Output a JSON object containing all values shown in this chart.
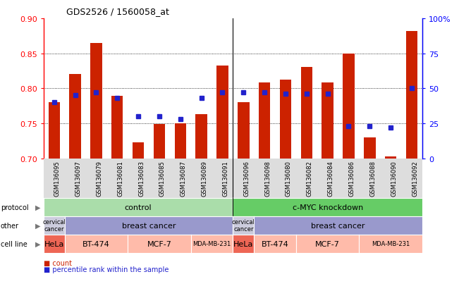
{
  "title": "GDS2526 / 1560058_at",
  "samples": [
    "GSM136095",
    "GSM136097",
    "GSM136079",
    "GSM136081",
    "GSM136083",
    "GSM136085",
    "GSM136087",
    "GSM136089",
    "GSM136091",
    "GSM136096",
    "GSM136098",
    "GSM136080",
    "GSM136082",
    "GSM136084",
    "GSM136086",
    "GSM136088",
    "GSM136090",
    "GSM136092"
  ],
  "bar_heights": [
    0.78,
    0.82,
    0.865,
    0.789,
    0.723,
    0.749,
    0.75,
    0.763,
    0.832,
    0.78,
    0.808,
    0.812,
    0.83,
    0.808,
    0.85,
    0.73,
    0.703,
    0.882
  ],
  "pct_ranks": [
    40,
    45,
    47,
    43,
    30,
    30,
    28,
    43,
    47,
    47,
    47,
    46,
    46,
    46,
    23,
    23,
    22,
    50
  ],
  "ylim_left": [
    0.7,
    0.9
  ],
  "ylim_right": [
    0,
    100
  ],
  "yticks_left": [
    0.7,
    0.75,
    0.8,
    0.85,
    0.9
  ],
  "yticks_right": [
    0,
    25,
    50,
    75,
    100
  ],
  "bar_color": "#cc2200",
  "dot_color": "#2222cc",
  "protocol_color_control": "#aaddaa",
  "protocol_color_cmyc": "#66cc66",
  "other_color_cervical": "#ccccdd",
  "other_color_breast": "#9999cc",
  "cell_line_color_hela": "#ee6655",
  "cell_line_color_other": "#ffbbaa",
  "legend_count_color": "#cc2200",
  "legend_pct_color": "#2222cc"
}
